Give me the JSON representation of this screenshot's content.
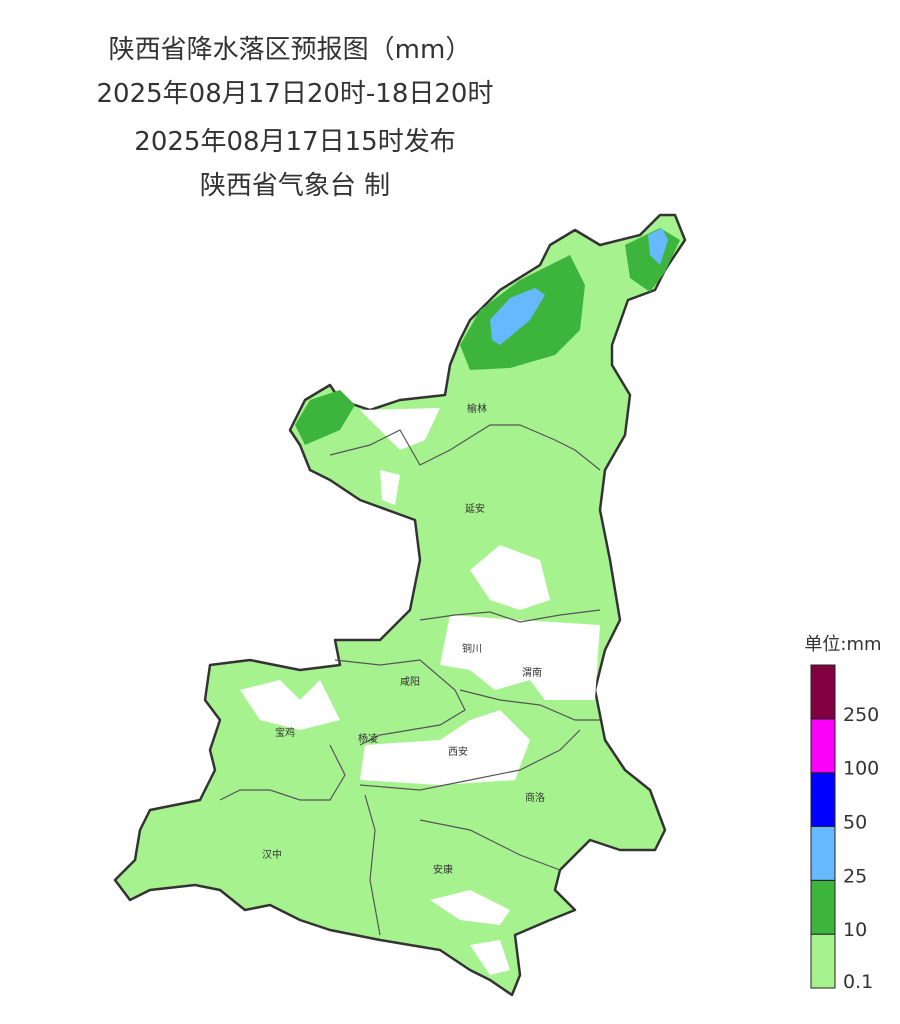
{
  "header": {
    "title": "陕西省降水落区预报图（mm）",
    "period": "2025年08月17日20时-18日20时",
    "issued": "2025年08月17日15时发布",
    "issuer": "陕西省气象台 制"
  },
  "cities": [
    {
      "label": "榆林"
    },
    {
      "label": "延安"
    },
    {
      "label": "铜川"
    },
    {
      "label": "渭南"
    },
    {
      "label": "咸阳"
    },
    {
      "label": "宝鸡"
    },
    {
      "label": "杨凌"
    },
    {
      "label": "西安"
    },
    {
      "label": "商洛"
    },
    {
      "label": "汉中"
    },
    {
      "label": "安康"
    }
  ],
  "legend": {
    "title": "单位:mm",
    "items": [
      {
        "label": "0.1",
        "color": "#a6f28f"
      },
      {
        "label": "10",
        "color": "#3db53d"
      },
      {
        "label": "25",
        "color": "#66b8ff"
      },
      {
        "label": "50",
        "color": "#0000fe"
      },
      {
        "label": "100",
        "color": "#fb00fa"
      },
      {
        "label": "250",
        "color": "#800040"
      }
    ]
  }
}
